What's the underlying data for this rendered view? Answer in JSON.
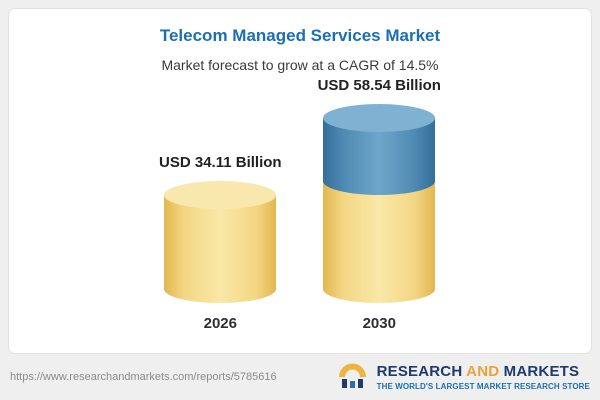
{
  "header": {
    "title": "Telecom Managed Services Market",
    "subtitle": "Market forecast to grow at a CAGR of 14.5%"
  },
  "chart_data": {
    "type": "bar",
    "categories": [
      "2026",
      "2030"
    ],
    "values": [
      34.11,
      58.54
    ],
    "value_labels": [
      "USD 34.11 Billion",
      "USD 58.54 Billion"
    ],
    "title": "Telecom Managed Services Market",
    "subtitle": "Market forecast to grow at a CAGR of 14.5%",
    "unit": "USD Billion",
    "cagr": "14.5%",
    "xlabel": "",
    "ylabel": "",
    "legend": "none",
    "grid": false,
    "style": "3d-cylinder bars; 2030 bar is split: base portion (equal to 2026 value) in gold, growth portion on top in blue",
    "colors": {
      "base_gold": "#F2D379",
      "growth_blue": "#4D8CB5"
    }
  },
  "footer": {
    "url": "https://www.researchandmarkets.com/reports/5785616",
    "logo": {
      "icon": "research-and-markets-logo-icon",
      "title_part1": "RESEARCH",
      "title_part2": "AND",
      "title_part3": "MARKETS",
      "tagline": "THE WORLD'S LARGEST MARKET RESEARCH STORE"
    }
  }
}
